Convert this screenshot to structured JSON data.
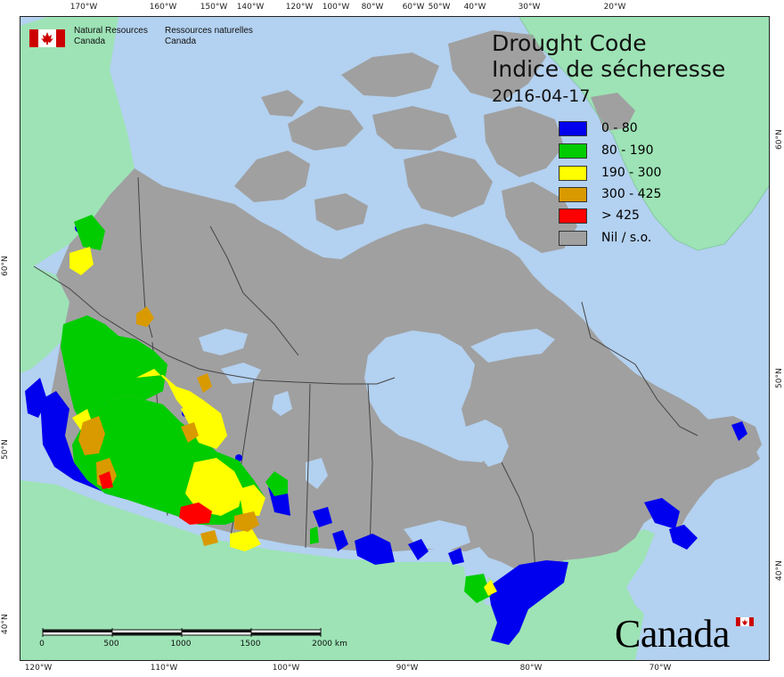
{
  "agency": {
    "en_line1": "Natural Resources",
    "en_line2": "Canada",
    "fr_line1": "Ressources naturelles",
    "fr_line2": "Canada"
  },
  "title": {
    "en": "Drought Code",
    "fr": "Indice de sécheresse",
    "date": "2016-04-17"
  },
  "legend": [
    {
      "label": "0 - 80",
      "color": "#0000ee"
    },
    {
      "label": "80 - 190",
      "color": "#00cc00"
    },
    {
      "label": "190 - 300",
      "color": "#ffff00"
    },
    {
      "label": "300 - 425",
      "color": "#d99a00"
    },
    {
      "label": "> 425",
      "color": "#ff0000"
    },
    {
      "label": "Nil / s.o.",
      "color": "#a0a0a0"
    }
  ],
  "graticule": {
    "top": [
      "170°W",
      "160°W",
      "150°W",
      "140°W",
      "120°W",
      "100°W",
      "80°W",
      "60°W",
      "50°W",
      "40°W",
      "30°W",
      "20°W"
    ],
    "bottom": [
      "120°W",
      "110°W",
      "100°W",
      "90°W",
      "80°W",
      "70°W"
    ],
    "left": [
      "60°N",
      "50°N",
      "40°N"
    ],
    "right": [
      "60°N",
      "50°N",
      "40°N"
    ]
  },
  "scale_bar": {
    "labels": [
      "0",
      "500",
      "1000",
      "1500",
      "2000 km"
    ]
  },
  "wordmark": "Canada",
  "colors": {
    "ocean": "#b3d1f0",
    "foreign_land": "#9de3b5",
    "canada_nil": "#a0a0a0",
    "boundary": "#444444"
  }
}
